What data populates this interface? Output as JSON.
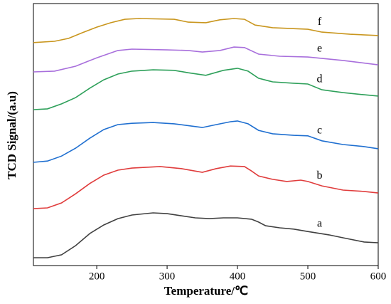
{
  "chart_data": {
    "type": "line",
    "xlabel": "Temperature/℃",
    "ylabel": "TCD Signal/(a.u)",
    "xlim": [
      110,
      600
    ],
    "xticks": [
      200,
      300,
      400,
      500,
      600
    ],
    "ylim": [
      0,
      100
    ],
    "series": [
      {
        "name": "a",
        "color": "#404040",
        "x": [
          110,
          130,
          150,
          170,
          190,
          210,
          230,
          250,
          280,
          300,
          320,
          340,
          360,
          380,
          400,
          420,
          430,
          440,
          460,
          480,
          500,
          530,
          550,
          580,
          600
        ],
        "values": [
          3.0,
          3.0,
          4.1,
          7.6,
          12.2,
          15.5,
          17.9,
          19.3,
          20.1,
          19.8,
          19.0,
          18.2,
          17.9,
          18.2,
          18.2,
          17.7,
          16.6,
          15.2,
          14.4,
          13.9,
          13.0,
          11.7,
          10.6,
          9.0,
          8.7
        ]
      },
      {
        "name": "b",
        "color": "#e03c3c",
        "x": [
          110,
          130,
          150,
          170,
          190,
          210,
          230,
          250,
          290,
          320,
          350,
          370,
          390,
          410,
          420,
          430,
          450,
          470,
          490,
          500,
          520,
          550,
          580,
          600
        ],
        "values": [
          21.7,
          22.0,
          23.9,
          27.4,
          31.3,
          34.5,
          36.4,
          37.2,
          37.8,
          37.0,
          35.6,
          37.0,
          38.0,
          37.8,
          36.1,
          34.2,
          32.9,
          32.1,
          32.6,
          32.1,
          30.4,
          28.8,
          28.3,
          27.7
        ]
      },
      {
        "name": "c",
        "color": "#1f6fd0",
        "x": [
          110,
          130,
          150,
          170,
          190,
          210,
          230,
          250,
          280,
          310,
          350,
          370,
          390,
          400,
          415,
          430,
          450,
          480,
          500,
          520,
          550,
          580,
          600
        ],
        "values": [
          39.4,
          39.9,
          41.8,
          44.8,
          48.6,
          51.9,
          53.8,
          54.3,
          54.6,
          54.1,
          52.7,
          53.8,
          54.9,
          55.2,
          54.1,
          51.6,
          50.3,
          49.7,
          49.5,
          47.6,
          46.2,
          45.4,
          44.6
        ]
      },
      {
        "name": "d",
        "color": "#2ea05a",
        "x": [
          110,
          130,
          150,
          170,
          190,
          210,
          230,
          250,
          280,
          310,
          330,
          355,
          380,
          400,
          415,
          430,
          450,
          480,
          500,
          520,
          550,
          580,
          600
        ],
        "values": [
          59.5,
          59.8,
          61.7,
          64.1,
          67.7,
          70.9,
          73.1,
          74.2,
          74.7,
          74.5,
          73.6,
          72.6,
          74.5,
          75.3,
          74.2,
          71.5,
          70.1,
          69.6,
          69.3,
          67.1,
          66.0,
          65.2,
          64.7
        ]
      },
      {
        "name": "e",
        "color": "#a86fdc",
        "x": [
          110,
          140,
          170,
          200,
          230,
          250,
          300,
          330,
          350,
          375,
          395,
          410,
          430,
          460,
          500,
          550,
          600
        ],
        "values": [
          73.9,
          74.2,
          76.1,
          79.3,
          82.1,
          82.6,
          82.3,
          82.1,
          81.5,
          82.1,
          83.4,
          83.2,
          80.7,
          79.9,
          79.6,
          78.3,
          76.6
        ]
      },
      {
        "name": "f",
        "color": "#c9961e",
        "x": [
          110,
          140,
          160,
          180,
          200,
          220,
          240,
          260,
          310,
          330,
          355,
          375,
          395,
          410,
          425,
          450,
          500,
          520,
          560,
          600
        ],
        "values": [
          85.1,
          85.6,
          86.7,
          88.9,
          91.0,
          92.7,
          94.0,
          94.3,
          94.0,
          92.9,
          92.7,
          93.8,
          94.3,
          94.0,
          91.8,
          90.8,
          90.2,
          89.1,
          88.3,
          87.8
        ]
      }
    ]
  }
}
